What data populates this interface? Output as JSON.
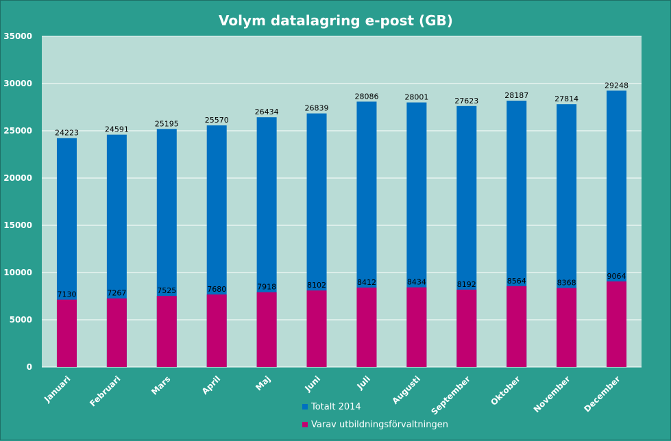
{
  "chart_data": {
    "type": "bar",
    "stacked": "overlay",
    "title": "Volym datalagring e-post (GB)",
    "xlabel": "",
    "ylabel": "",
    "ylim": [
      0,
      35000
    ],
    "yticks": [
      0,
      5000,
      10000,
      15000,
      20000,
      25000,
      30000,
      35000
    ],
    "grid": true,
    "legend_position": "bottom",
    "categories": [
      "Januari",
      "Februari",
      "Mars",
      "April",
      "Maj",
      "Juni",
      "Juli",
      "Augusti",
      "September",
      "Oktober",
      "November",
      "December"
    ],
    "series": [
      {
        "name": "Totalt 2014",
        "color": "#0070c0",
        "values": [
          24223,
          24591,
          25195,
          25570,
          26434,
          26839,
          28086,
          28001,
          27623,
          28187,
          27814,
          29248
        ]
      },
      {
        "name": "Varav utbildningsförvaltningen",
        "color": "#c00070",
        "values": [
          7130,
          7267,
          7525,
          7680,
          7918,
          8102,
          8412,
          8434,
          8192,
          8564,
          8368,
          9064
        ]
      }
    ],
    "colors": {
      "background": "#2a9d8f",
      "plot_area": "#b9dcd6",
      "grid": "#ffffff",
      "text": "#ffffff"
    }
  }
}
